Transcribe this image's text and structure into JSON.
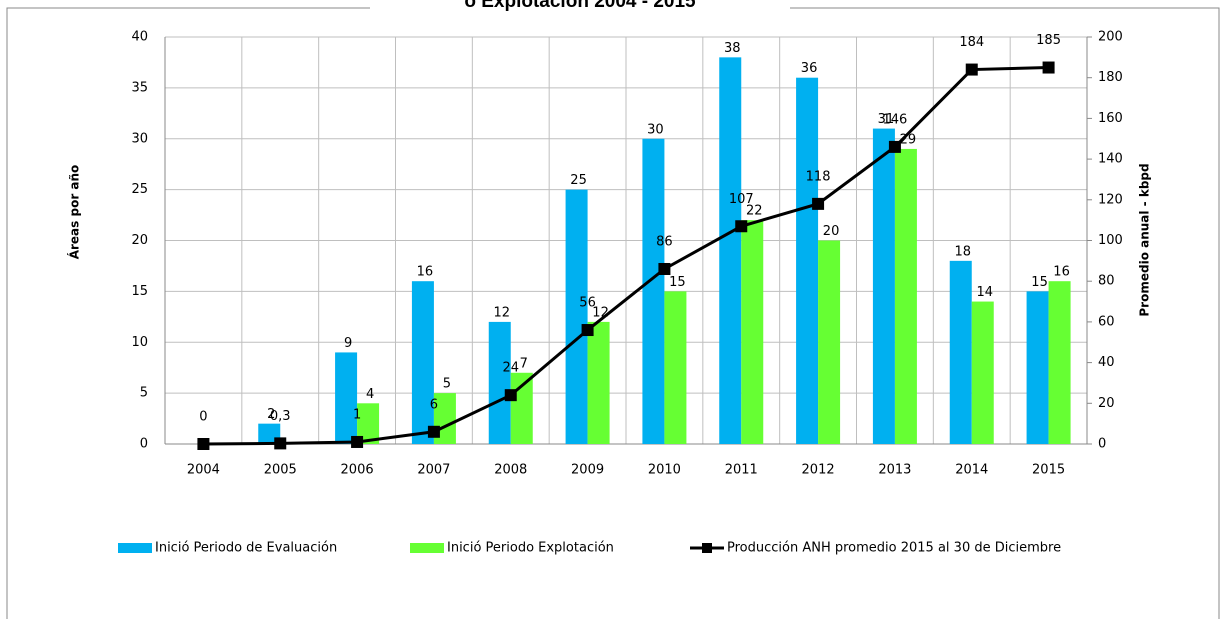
{
  "chart_data": {
    "type": "bar-line",
    "title": "o Explotación 2004 - 2015",
    "y_label": "Áreas por año",
    "y2_label": "Promedio anual - kbpd",
    "categories": [
      "2004",
      "2005",
      "2006",
      "2007",
      "2008",
      "2009",
      "2010",
      "2011",
      "2012",
      "2013",
      "2014",
      "2015"
    ],
    "series": [
      {
        "name": "Inició Periodo de Evaluación",
        "color": "#00b0f0",
        "type": "bar",
        "values": [
          null,
          2,
          9,
          16,
          12,
          25,
          30,
          38,
          36,
          31,
          18,
          15
        ]
      },
      {
        "name": "Inició Periodo Explotación",
        "color": "#66ff33",
        "type": "bar",
        "values": [
          null,
          null,
          4,
          5,
          7,
          12,
          15,
          22,
          20,
          29,
          14,
          16
        ]
      },
      {
        "name": "Producción ANH promedio 2015 al 30 de Diciembre",
        "color": "#000000",
        "type": "line",
        "axis": "y2",
        "values": [
          0,
          0.3,
          1,
          6,
          24,
          56,
          86,
          107,
          118,
          146,
          184,
          185
        ],
        "value_labels": [
          "0",
          "0,3",
          "1",
          "6",
          "24",
          "56",
          "86",
          "107",
          "118",
          "146",
          "184",
          "185"
        ]
      }
    ],
    "ylim": [
      0,
      40
    ],
    "yticks": [
      0,
      5,
      10,
      15,
      20,
      25,
      30,
      35,
      40
    ],
    "y2lim": [
      0,
      200
    ],
    "y2ticks": [
      0,
      20,
      40,
      60,
      80,
      100,
      120,
      140,
      160,
      180,
      200
    ],
    "grid": true
  }
}
